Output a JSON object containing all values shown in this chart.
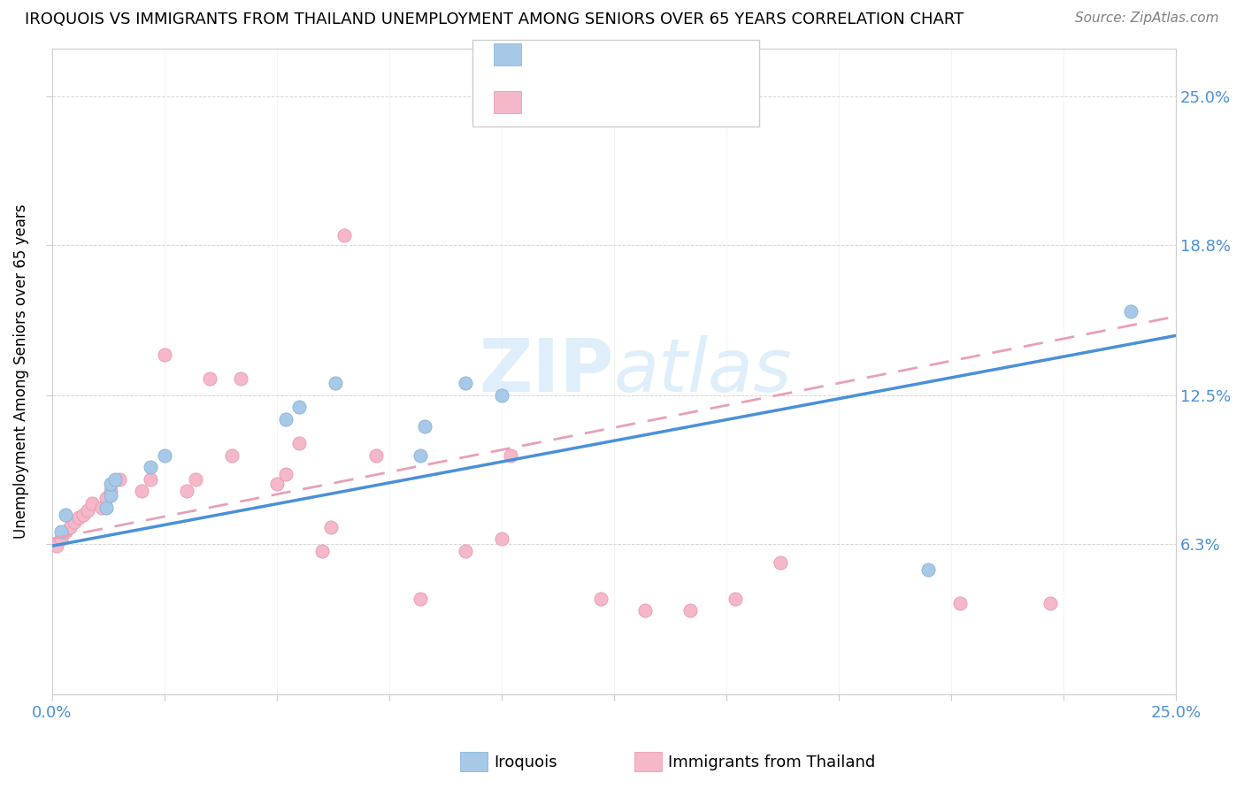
{
  "title": "IROQUOIS VS IMMIGRANTS FROM THAILAND UNEMPLOYMENT AMONG SENIORS OVER 65 YEARS CORRELATION CHART",
  "source": "Source: ZipAtlas.com",
  "ylabel": "Unemployment Among Seniors over 65 years",
  "xlim": [
    0.0,
    0.25
  ],
  "ylim": [
    0.0,
    0.27
  ],
  "iroquois_color": "#a8c8e8",
  "iroquois_edge_color": "#7aaed4",
  "thailand_color": "#f4b8c8",
  "thailand_edge_color": "#e890a8",
  "iroquois_line_color": "#4a90d9",
  "thailand_line_color": "#e8a0b8",
  "watermark_color": "#d0e8f8",
  "iroquois_x": [
    0.002,
    0.003,
    0.012,
    0.013,
    0.013,
    0.014,
    0.022,
    0.025,
    0.052,
    0.055,
    0.063,
    0.082,
    0.083,
    0.092,
    0.1,
    0.195,
    0.24
  ],
  "iroquois_y": [
    0.068,
    0.075,
    0.078,
    0.083,
    0.088,
    0.09,
    0.095,
    0.1,
    0.115,
    0.12,
    0.13,
    0.1,
    0.112,
    0.13,
    0.125,
    0.052,
    0.16
  ],
  "thailand_x": [
    0.001,
    0.002,
    0.003,
    0.004,
    0.005,
    0.006,
    0.007,
    0.008,
    0.009,
    0.011,
    0.012,
    0.013,
    0.015,
    0.02,
    0.022,
    0.025,
    0.03,
    0.032,
    0.035,
    0.04,
    0.042,
    0.05,
    0.052,
    0.055,
    0.06,
    0.062,
    0.065,
    0.072,
    0.082,
    0.092,
    0.1,
    0.102,
    0.122,
    0.132,
    0.142,
    0.152,
    0.162,
    0.202,
    0.222
  ],
  "thailand_y": [
    0.062,
    0.065,
    0.068,
    0.07,
    0.072,
    0.074,
    0.075,
    0.077,
    0.08,
    0.078,
    0.082,
    0.085,
    0.09,
    0.085,
    0.09,
    0.142,
    0.085,
    0.09,
    0.132,
    0.1,
    0.132,
    0.088,
    0.092,
    0.105,
    0.06,
    0.07,
    0.192,
    0.1,
    0.04,
    0.06,
    0.065,
    0.1,
    0.04,
    0.035,
    0.035,
    0.04,
    0.055,
    0.038,
    0.038
  ]
}
